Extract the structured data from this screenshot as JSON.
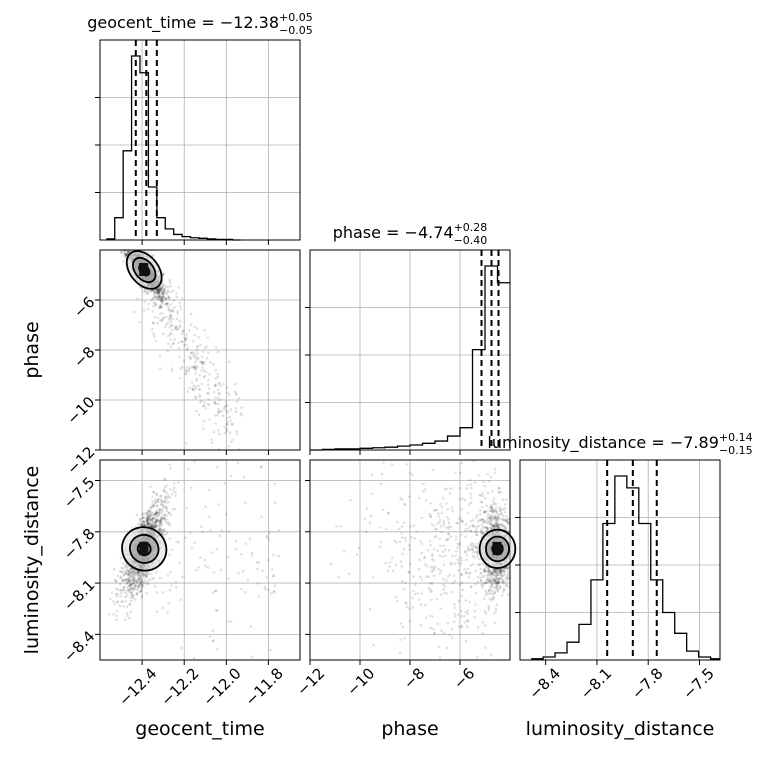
{
  "chart_data": [
    {
      "type": "histogram",
      "panel": "geocent_time",
      "title": "geocent_time = −12.38",
      "title_sup": "+0.05",
      "title_sub": "−0.05",
      "range": [
        -12.6,
        -11.65
      ],
      "x": [
        -12.55,
        -12.51,
        -12.47,
        -12.43,
        -12.39,
        -12.35,
        -12.31,
        -12.27,
        -12.23,
        -12.19,
        -12.15,
        -12.11,
        -12.07,
        -12.03,
        -11.99,
        -11.95
      ],
      "counts": [
        2,
        40,
        160,
        330,
        300,
        95,
        40,
        20,
        10,
        6,
        4,
        3,
        2,
        1,
        1,
        0
      ],
      "quantiles": [
        -12.43,
        -12.38,
        -12.33
      ]
    },
    {
      "type": "histogram",
      "panel": "phase",
      "title": "phase = −4.74",
      "title_sup": "+0.28",
      "title_sub": "−0.40",
      "range": [
        -12.0,
        -4.0
      ],
      "x": [
        -11.75,
        -11.25,
        -10.75,
        -10.25,
        -9.75,
        -9.25,
        -8.75,
        -8.25,
        -7.75,
        -7.25,
        -6.75,
        -6.25,
        -5.75,
        -5.25,
        -4.75,
        -4.25
      ],
      "counts": [
        0,
        1,
        2,
        2,
        3,
        4,
        5,
        7,
        9,
        12,
        16,
        25,
        40,
        180,
        330,
        300
      ],
      "quantiles": [
        -5.14,
        -4.74,
        -4.46
      ]
    },
    {
      "type": "histogram",
      "panel": "luminosity_distance",
      "title": "luminosity_distance = −7.89",
      "title_sup": "+0.14",
      "title_sub": "−0.15",
      "range": [
        -8.55,
        -7.38
      ],
      "x": [
        -8.45,
        -8.38,
        -8.31,
        -8.24,
        -8.17,
        -8.1,
        -8.03,
        -7.96,
        -7.89,
        -7.82,
        -7.75,
        -7.68,
        -7.61,
        -7.54,
        -7.47,
        -7.4
      ],
      "counts": [
        2,
        5,
        12,
        30,
        60,
        135,
        230,
        310,
        290,
        230,
        135,
        80,
        45,
        15,
        5,
        2
      ],
      "quantiles": [
        -8.04,
        -7.89,
        -7.75
      ]
    },
    {
      "type": "scatter",
      "panel": "phase vs geocent_time",
      "x_range": [
        -12.6,
        -11.65
      ],
      "y_range": [
        -12.0,
        -4.0
      ],
      "center": [
        -12.38,
        -4.74
      ],
      "trend": "phase decreases as geocent_time increases"
    },
    {
      "type": "scatter",
      "panel": "luminosity_distance vs geocent_time",
      "x_range": [
        -12.6,
        -11.65
      ],
      "y_range": [
        -8.55,
        -7.38
      ],
      "center": [
        -12.38,
        -7.89
      ],
      "trend": "luminosity_distance increases with geocent_time"
    },
    {
      "type": "scatter",
      "panel": "luminosity_distance vs phase",
      "x_range": [
        -12.0,
        -4.0
      ],
      "y_range": [
        -8.55,
        -7.38
      ],
      "center": [
        -4.74,
        -7.89
      ],
      "trend": "concentrated near phase ≈ −4.5, broad spread toward lower phase"
    }
  ],
  "axes": {
    "geocent_time": {
      "label": "geocent_time",
      "ticks": [
        -12.4,
        -12.2,
        -12.0,
        -11.8
      ],
      "tick_labels": [
        "−12.4",
        "−12.2",
        "−12.0",
        "−11.8"
      ]
    },
    "phase": {
      "label": "phase",
      "ticks": [
        -12,
        -10,
        -8,
        -6
      ],
      "tick_labels": [
        "−12",
        "−10",
        "−8",
        "−6"
      ]
    },
    "luminosity_distance": {
      "label": "luminosity_distance",
      "ticks": [
        -8.4,
        -8.1,
        -7.8,
        -7.5
      ],
      "tick_labels": [
        "−8.4",
        "−8.1",
        "−7.8",
        "−7.5"
      ]
    }
  },
  "style": {
    "grid": true,
    "hist_color": "#000000",
    "scatter_color": "#000000"
  }
}
